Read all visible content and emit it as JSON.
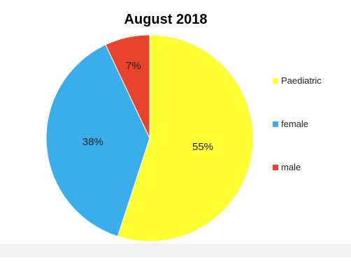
{
  "chart_data": {
    "type": "pie",
    "title": "August 2018",
    "slices": [
      {
        "label": "Paediatric",
        "value": 55,
        "display": "55%",
        "color": "#ffff33"
      },
      {
        "label": "female",
        "value": 38,
        "display": "38%",
        "color": "#3aaeea"
      },
      {
        "label": "male",
        "value": 7,
        "display": "7%",
        "color": "#e8432d"
      }
    ],
    "legend_position": "right"
  }
}
